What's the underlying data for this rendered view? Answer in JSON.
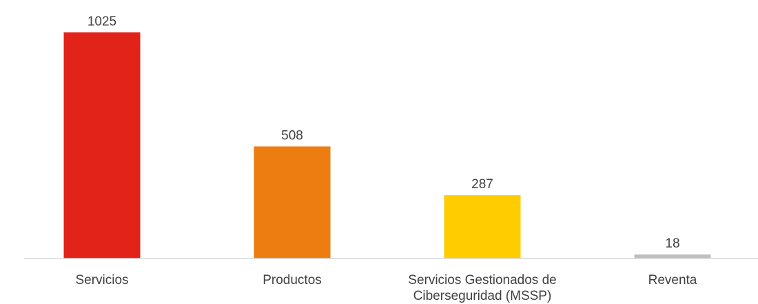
{
  "chart_data": {
    "type": "bar",
    "categories": [
      "Servicios",
      "Productos",
      "Servicios Gestionados de Ciberseguridad (MSSP)",
      "Reventa"
    ],
    "category_label_lines": [
      [
        "Servicios"
      ],
      [
        "Productos"
      ],
      [
        "Servicios Gestionados de",
        "Ciberseguridad (MSSP)"
      ],
      [
        "Reventa"
      ]
    ],
    "values": [
      1025,
      508,
      287,
      18
    ],
    "colors": [
      "#E2231A",
      "#EE7D11",
      "#FFCC00",
      "#BFBFBF"
    ],
    "data_labels": [
      "1025",
      "508",
      "287",
      "18"
    ],
    "title": "",
    "xlabel": "",
    "ylabel": "",
    "ylim": [
      0,
      1025
    ],
    "grid": false,
    "legend": "none"
  }
}
